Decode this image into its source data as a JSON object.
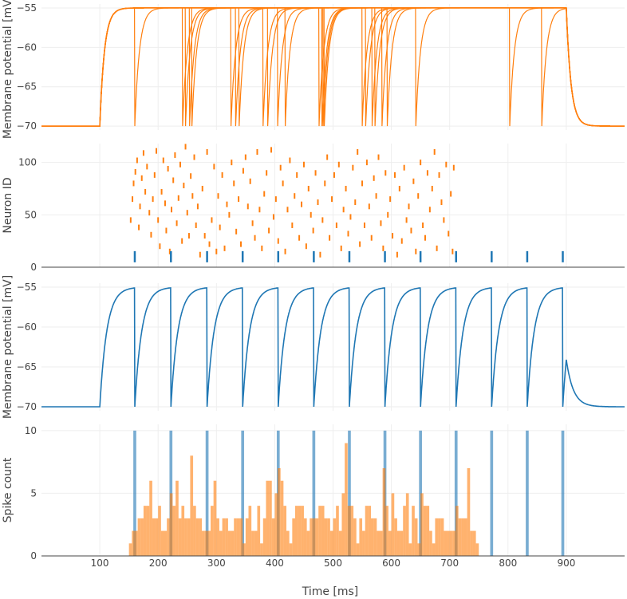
{
  "colors": {
    "pop": "#ff7f0e",
    "single": "#1f77b4",
    "grid": "#eeeeee",
    "text": "#444444"
  },
  "xaxis": {
    "label": "Time [ms]",
    "range": [
      0,
      1000
    ],
    "ticks": [
      100,
      200,
      300,
      400,
      500,
      600,
      700,
      800,
      900
    ]
  },
  "chart_data": [
    {
      "type": "line",
      "panel": "population-membrane",
      "ylabel": "Membrane potential [mV]",
      "ylim": [
        -70.5,
        -54.5
      ],
      "yticks": [
        -55,
        -60,
        -65,
        -70
      ],
      "ytick_labels": [
        "−55",
        "−60",
        "−65",
        "−70"
      ],
      "stim_on": 100,
      "stim_off": 900,
      "v_rest": -70,
      "v_th": -55,
      "tau": 8,
      "spike_times_ms": [
        160,
        242,
        247,
        254,
        258,
        325,
        333,
        339,
        380,
        388,
        405,
        418,
        476,
        481,
        483,
        485,
        550,
        556,
        567,
        572,
        584,
        593,
        642,
        803,
        858
      ]
    },
    {
      "type": "scatter",
      "panel": "raster",
      "ylabel": "Neuron ID",
      "ylim": [
        0,
        118
      ],
      "yticks": [
        0,
        50,
        100
      ],
      "ytick_labels": [
        "0",
        "50",
        "100"
      ],
      "population_spikes": [
        [
          153,
          45
        ],
        [
          156,
          65
        ],
        [
          158,
          80
        ],
        [
          161,
          91
        ],
        [
          164,
          102
        ],
        [
          167,
          38
        ],
        [
          169,
          58
        ],
        [
          172,
          85
        ],
        [
          175,
          109
        ],
        [
          178,
          72
        ],
        [
          181,
          96
        ],
        [
          185,
          52
        ],
        [
          188,
          31
        ],
        [
          191,
          65
        ],
        [
          194,
          88
        ],
        [
          197,
          111
        ],
        [
          200,
          45
        ],
        [
          203,
          20
        ],
        [
          206,
          72
        ],
        [
          209,
          102
        ],
        [
          212,
          61
        ],
        [
          214,
          35
        ],
        [
          217,
          94
        ],
        [
          220,
          15
        ],
        [
          223,
          55
        ],
        [
          226,
          83
        ],
        [
          229,
          107
        ],
        [
          232,
          42
        ],
        [
          235,
          66
        ],
        [
          238,
          98
        ],
        [
          241,
          25
        ],
        [
          244,
          78
        ],
        [
          247,
          115
        ],
        [
          250,
          52
        ],
        [
          253,
          30
        ],
        [
          256,
          87
        ],
        [
          259,
          68
        ],
        [
          262,
          105
        ],
        [
          265,
          40
        ],
        [
          268,
          58
        ],
        [
          272,
          12
        ],
        [
          276,
          75
        ],
        [
          280,
          30
        ],
        [
          284,
          110
        ],
        [
          288,
          22
        ],
        [
          292,
          45
        ],
        [
          296,
          96
        ],
        [
          300,
          15
        ],
        [
          303,
          68
        ],
        [
          306,
          38
        ],
        [
          310,
          88
        ],
        [
          314,
          18
        ],
        [
          318,
          60
        ],
        [
          322,
          50
        ],
        [
          326,
          100
        ],
        [
          330,
          80
        ],
        [
          334,
          34
        ],
        [
          338,
          65
        ],
        [
          342,
          22
        ],
        [
          346,
          92
        ],
        [
          350,
          105
        ],
        [
          354,
          58
        ],
        [
          358,
          82
        ],
        [
          362,
          42
        ],
        [
          366,
          28
        ],
        [
          370,
          110
        ],
        [
          374,
          55
        ],
        [
          378,
          18
        ],
        [
          382,
          70
        ],
        [
          386,
          90
        ],
        [
          390,
          35
        ],
        [
          394,
          112
        ],
        [
          398,
          48
        ],
        [
          402,
          65
        ],
        [
          406,
          25
        ],
        [
          410,
          95
        ],
        [
          414,
          80
        ],
        [
          418,
          15
        ],
        [
          422,
          55
        ],
        [
          426,
          102
        ],
        [
          430,
          40
        ],
        [
          434,
          68
        ],
        [
          438,
          88
        ],
        [
          442,
          28
        ],
        [
          446,
          60
        ],
        [
          450,
          98
        ],
        [
          454,
          20
        ],
        [
          458,
          75
        ],
        [
          462,
          50
        ],
        [
          466,
          35
        ],
        [
          470,
          90
        ],
        [
          474,
          62
        ],
        [
          478,
          12
        ],
        [
          482,
          45
        ],
        [
          486,
          80
        ],
        [
          490,
          105
        ],
        [
          494,
          28
        ],
        [
          498,
          65
        ],
        [
          502,
          88
        ],
        [
          506,
          40
        ],
        [
          510,
          98
        ],
        [
          514,
          18
        ],
        [
          518,
          55
        ],
        [
          522,
          75
        ],
        [
          526,
          32
        ],
        [
          530,
          48
        ],
        [
          534,
          95
        ],
        [
          538,
          62
        ],
        [
          542,
          110
        ],
        [
          546,
          22
        ],
        [
          550,
          80
        ],
        [
          554,
          40
        ],
        [
          558,
          100
        ],
        [
          562,
          58
        ],
        [
          566,
          28
        ],
        [
          570,
          85
        ],
        [
          574,
          68
        ],
        [
          578,
          105
        ],
        [
          582,
          42
        ],
        [
          586,
          18
        ],
        [
          590,
          90
        ],
        [
          594,
          50
        ],
        [
          598,
          65
        ],
        [
          602,
          30
        ],
        [
          606,
          88
        ],
        [
          610,
          12
        ],
        [
          614,
          75
        ],
        [
          618,
          25
        ],
        [
          622,
          95
        ],
        [
          626,
          45
        ],
        [
          630,
          58
        ],
        [
          634,
          35
        ],
        [
          638,
          82
        ],
        [
          642,
          15
        ],
        [
          646,
          68
        ],
        [
          650,
          100
        ],
        [
          654,
          40
        ],
        [
          658,
          28
        ],
        [
          662,
          90
        ],
        [
          666,
          55
        ],
        [
          670,
          75
        ],
        [
          674,
          110
        ],
        [
          678,
          18
        ],
        [
          682,
          88
        ],
        [
          686,
          62
        ],
        [
          690,
          45
        ],
        [
          694,
          98
        ],
        [
          698,
          32
        ],
        [
          702,
          70
        ],
        [
          705,
          15
        ],
        [
          707,
          95
        ]
      ],
      "single_spikes_x": [
        160,
        222,
        284,
        345,
        406,
        467,
        528,
        589,
        650,
        711,
        772,
        833,
        894
      ],
      "single_spike_id": 10
    },
    {
      "type": "line",
      "panel": "single-membrane",
      "ylabel": "Membrane potential [mV]",
      "ylim": [
        -70.5,
        -54.5
      ],
      "yticks": [
        -55,
        -60,
        -65,
        -70
      ],
      "ytick_labels": [
        "−55",
        "−60",
        "−65",
        "−70"
      ],
      "stim_on": 100,
      "stim_off": 900,
      "v_rest": -70,
      "v_th": -55,
      "tau": 12,
      "spike_times_ms": [
        160,
        222,
        284,
        345,
        406,
        467,
        528,
        589,
        650,
        711,
        772,
        833,
        894
      ]
    },
    {
      "type": "bar",
      "panel": "histogram",
      "ylabel": "Spike count",
      "ylim": [
        0,
        10.5
      ],
      "yticks": [
        0,
        5,
        10
      ],
      "ytick_labels": [
        "0",
        "5",
        "10"
      ],
      "bin_start": 150,
      "bin_width": 5,
      "population_counts": [
        1,
        2,
        2,
        3,
        3,
        4,
        4,
        6,
        3,
        3,
        4,
        2,
        2,
        3,
        5,
        4,
        6,
        3,
        4,
        3,
        3,
        8,
        4,
        3,
        3,
        2,
        2,
        2,
        4,
        6,
        3,
        2,
        3,
        3,
        2,
        2,
        3,
        3,
        3,
        1,
        3,
        4,
        2,
        2,
        4,
        1,
        3,
        6,
        6,
        3,
        5,
        7,
        6,
        4,
        2,
        1,
        3,
        4,
        4,
        4,
        3,
        2,
        3,
        3,
        3,
        4,
        4,
        3,
        3,
        2,
        3,
        4,
        2,
        5,
        9,
        4,
        4,
        3,
        1,
        3,
        2,
        4,
        4,
        3,
        3,
        2,
        2,
        7,
        4,
        2,
        5,
        3,
        2,
        2,
        4,
        5,
        1,
        4,
        3,
        1,
        5,
        4,
        4,
        2,
        1,
        3,
        3,
        3,
        2,
        2,
        2,
        2,
        4,
        3,
        3,
        3,
        7,
        2,
        2,
        1
      ],
      "single_bins": [
        [
          160,
          10
        ],
        [
          222,
          10
        ],
        [
          284,
          10
        ],
        [
          345,
          10
        ],
        [
          406,
          10
        ],
        [
          467,
          10
        ],
        [
          528,
          10
        ],
        [
          589,
          10
        ],
        [
          650,
          10
        ],
        [
          711,
          10
        ],
        [
          772,
          10
        ],
        [
          833,
          10
        ],
        [
          894,
          10
        ]
      ]
    }
  ]
}
